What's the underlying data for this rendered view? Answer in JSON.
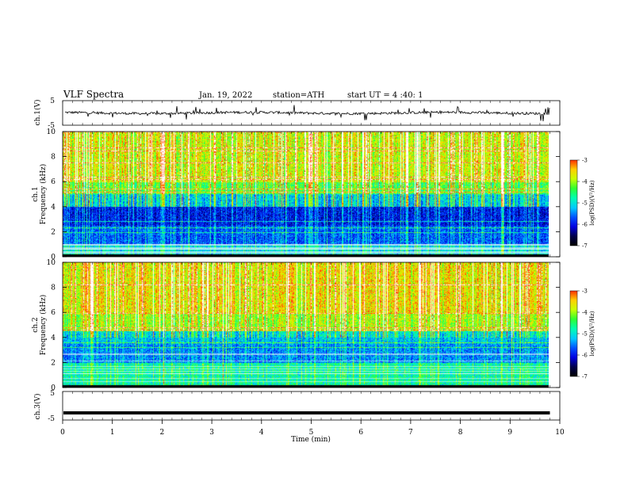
{
  "header": {
    "title": "VLF  Spectra",
    "date": "Jan. 19, 2022",
    "station": "station=ATH",
    "start_ut": "start  UT  =   4  :40: 1"
  },
  "chart_data": [
    {
      "type": "line",
      "panel": "ch.1 waveform",
      "ylabel": "ch.1(V)",
      "ylim": [
        -5,
        5
      ],
      "yticks": [
        "5",
        "-5"
      ],
      "xlim": [
        0,
        10
      ],
      "description_values": {
        "baseline_v": 0,
        "noise_amplitude_v": 1,
        "spike_amplitude_v": 3
      },
      "color": "#000000"
    },
    {
      "type": "heatmap",
      "panel": "ch.1 spectrogram",
      "ylabel": "ch.1\nFrequency (kHz)",
      "ylabel_line1": "ch.1",
      "ylabel_line2": "Frequency (kHz)",
      "ylim": [
        0,
        10
      ],
      "yticks": [
        "0",
        "2",
        "4",
        "6",
        "8",
        "10"
      ],
      "xlim": [
        0,
        9.8
      ],
      "colorbar": {
        "label": "log(PSD)(V²/Hz)",
        "range": [
          -7,
          -3
        ],
        "ticks": [
          "-3",
          "-4",
          "-5",
          "-6",
          "-7"
        ]
      }
    },
    {
      "type": "heatmap",
      "panel": "ch.2 spectrogram",
      "ylabel_line1": "ch.2",
      "ylabel_line2": "Frequency (kHz)",
      "ylim": [
        0,
        10
      ],
      "yticks": [
        "0",
        "2",
        "4",
        "6",
        "8",
        "10"
      ],
      "xlim": [
        0,
        9.8
      ],
      "colorbar": {
        "label": "log(PSD)(V²/Hz)",
        "range": [
          -7,
          -3
        ],
        "ticks": [
          "-3",
          "-4",
          "-5",
          "-6",
          "-7"
        ]
      }
    },
    {
      "type": "line",
      "panel": "ch.3 waveform",
      "ylabel": "ch.3(V)",
      "ylim": [
        -5,
        5
      ],
      "yticks": [
        "5",
        "-5"
      ],
      "xlim": [
        0,
        10
      ],
      "description_values": {
        "baseline_v": -2.5
      },
      "color": "#000000"
    }
  ],
  "x_axis": {
    "label": "Time  (min)",
    "range": [
      0,
      10
    ],
    "ticks": [
      "0",
      "1",
      "2",
      "3",
      "4",
      "5",
      "6",
      "7",
      "8",
      "9",
      "10"
    ]
  },
  "colors": {
    "colormap": [
      "#000000",
      "#00004a",
      "#0000e0",
      "#0050ff",
      "#00c8ff",
      "#00ffb0",
      "#30ff30",
      "#c8ff00",
      "#ffd000",
      "#ff3000",
      "#ffffff"
    ],
    "spectrogram_gap": "#ffffff"
  }
}
